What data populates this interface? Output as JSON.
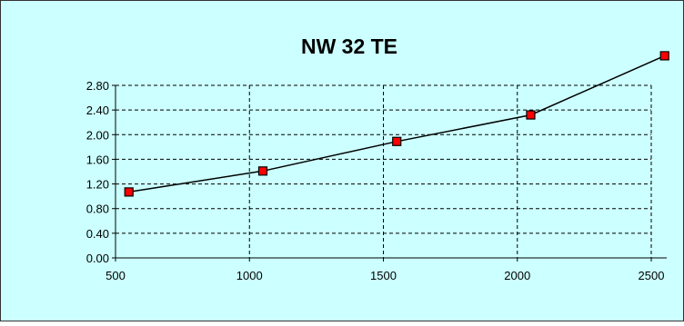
{
  "chart_data": {
    "type": "line",
    "title": "NW 32 TE",
    "xlabel": "",
    "ylabel": "",
    "x_ticks": [
      "500",
      "1000",
      "1500",
      "2000",
      "2500"
    ],
    "y_ticks": [
      "0.00",
      "0.40",
      "0.80",
      "1.20",
      "1.60",
      "2.00",
      "2.40",
      "2.80"
    ],
    "xlim": [
      500,
      2500
    ],
    "ylim": [
      0,
      2.8
    ],
    "grid": true,
    "legend": "none",
    "series": [
      {
        "x": [
          550,
          1050,
          1550,
          2050,
          2550
        ],
        "values": [
          1.07,
          1.41,
          1.89,
          2.32,
          3.28
        ]
      }
    ]
  },
  "colors": {
    "chart_background": "#ccffff",
    "border": "#333333",
    "grid": "#000000",
    "line": "#000000",
    "marker_fill": "#ff0000",
    "marker_stroke": "#000000"
  }
}
